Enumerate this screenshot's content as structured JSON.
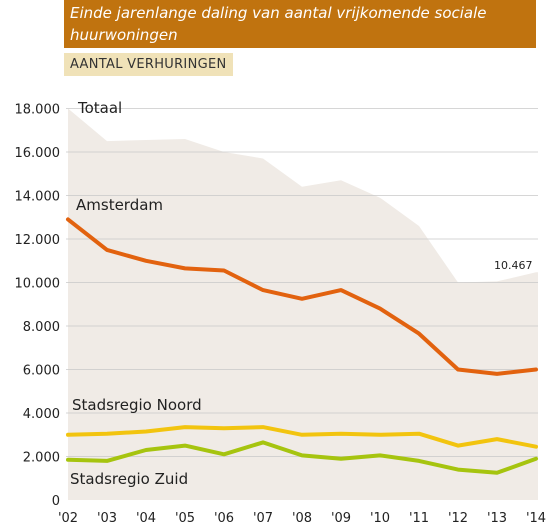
{
  "header": {
    "title": "Einde jarenlange daling van aantal vrijkomende sociale huurwoningen",
    "subtitle": "AANTAL VERHURINGEN"
  },
  "colors": {
    "title_bg": "#c0730f",
    "badge_bg": "#f0e2b8",
    "area": "#f0ebe6",
    "amsterdam": "#e2620f",
    "noord": "#f2c40f",
    "zuid": "#a6c40f",
    "grid": "#c8c8c8"
  },
  "chart_data": {
    "type": "line",
    "categories": [
      "'02",
      "'03",
      "'04",
      "'05",
      "'06",
      "'07",
      "'08",
      "'09",
      "'10",
      "'11",
      "'12",
      "'13",
      "'14"
    ],
    "yticks": [
      "0",
      "2.000",
      "4.000",
      "6.000",
      "8.000",
      "10.000",
      "12.000",
      "14.000",
      "16.000",
      "18.000"
    ],
    "ylim": [
      0,
      18000
    ],
    "grid": true,
    "series": [
      {
        "name": "Totaal",
        "type": "area",
        "values": [
          18000,
          16500,
          16550,
          16600,
          16000,
          15700,
          14400,
          14700,
          13900,
          12600,
          10000,
          10050,
          10467
        ]
      },
      {
        "name": "Amsterdam",
        "values": [
          12900,
          11500,
          11000,
          10650,
          10550,
          9650,
          9250,
          9650,
          8800,
          7650,
          6000,
          5800,
          6000
        ]
      },
      {
        "name": "Stadsregio Noord",
        "values": [
          3000,
          3050,
          3150,
          3350,
          3300,
          3350,
          3000,
          3050,
          3000,
          3050,
          2500,
          2800,
          2450
        ]
      },
      {
        "name": "Stadsregio Zuid",
        "values": [
          1850,
          1800,
          2300,
          2500,
          2100,
          2650,
          2050,
          1900,
          2050,
          1800,
          1400,
          1250,
          1900
        ]
      }
    ],
    "annotations": [
      {
        "series": "Totaal",
        "label": "10.467"
      }
    ]
  }
}
